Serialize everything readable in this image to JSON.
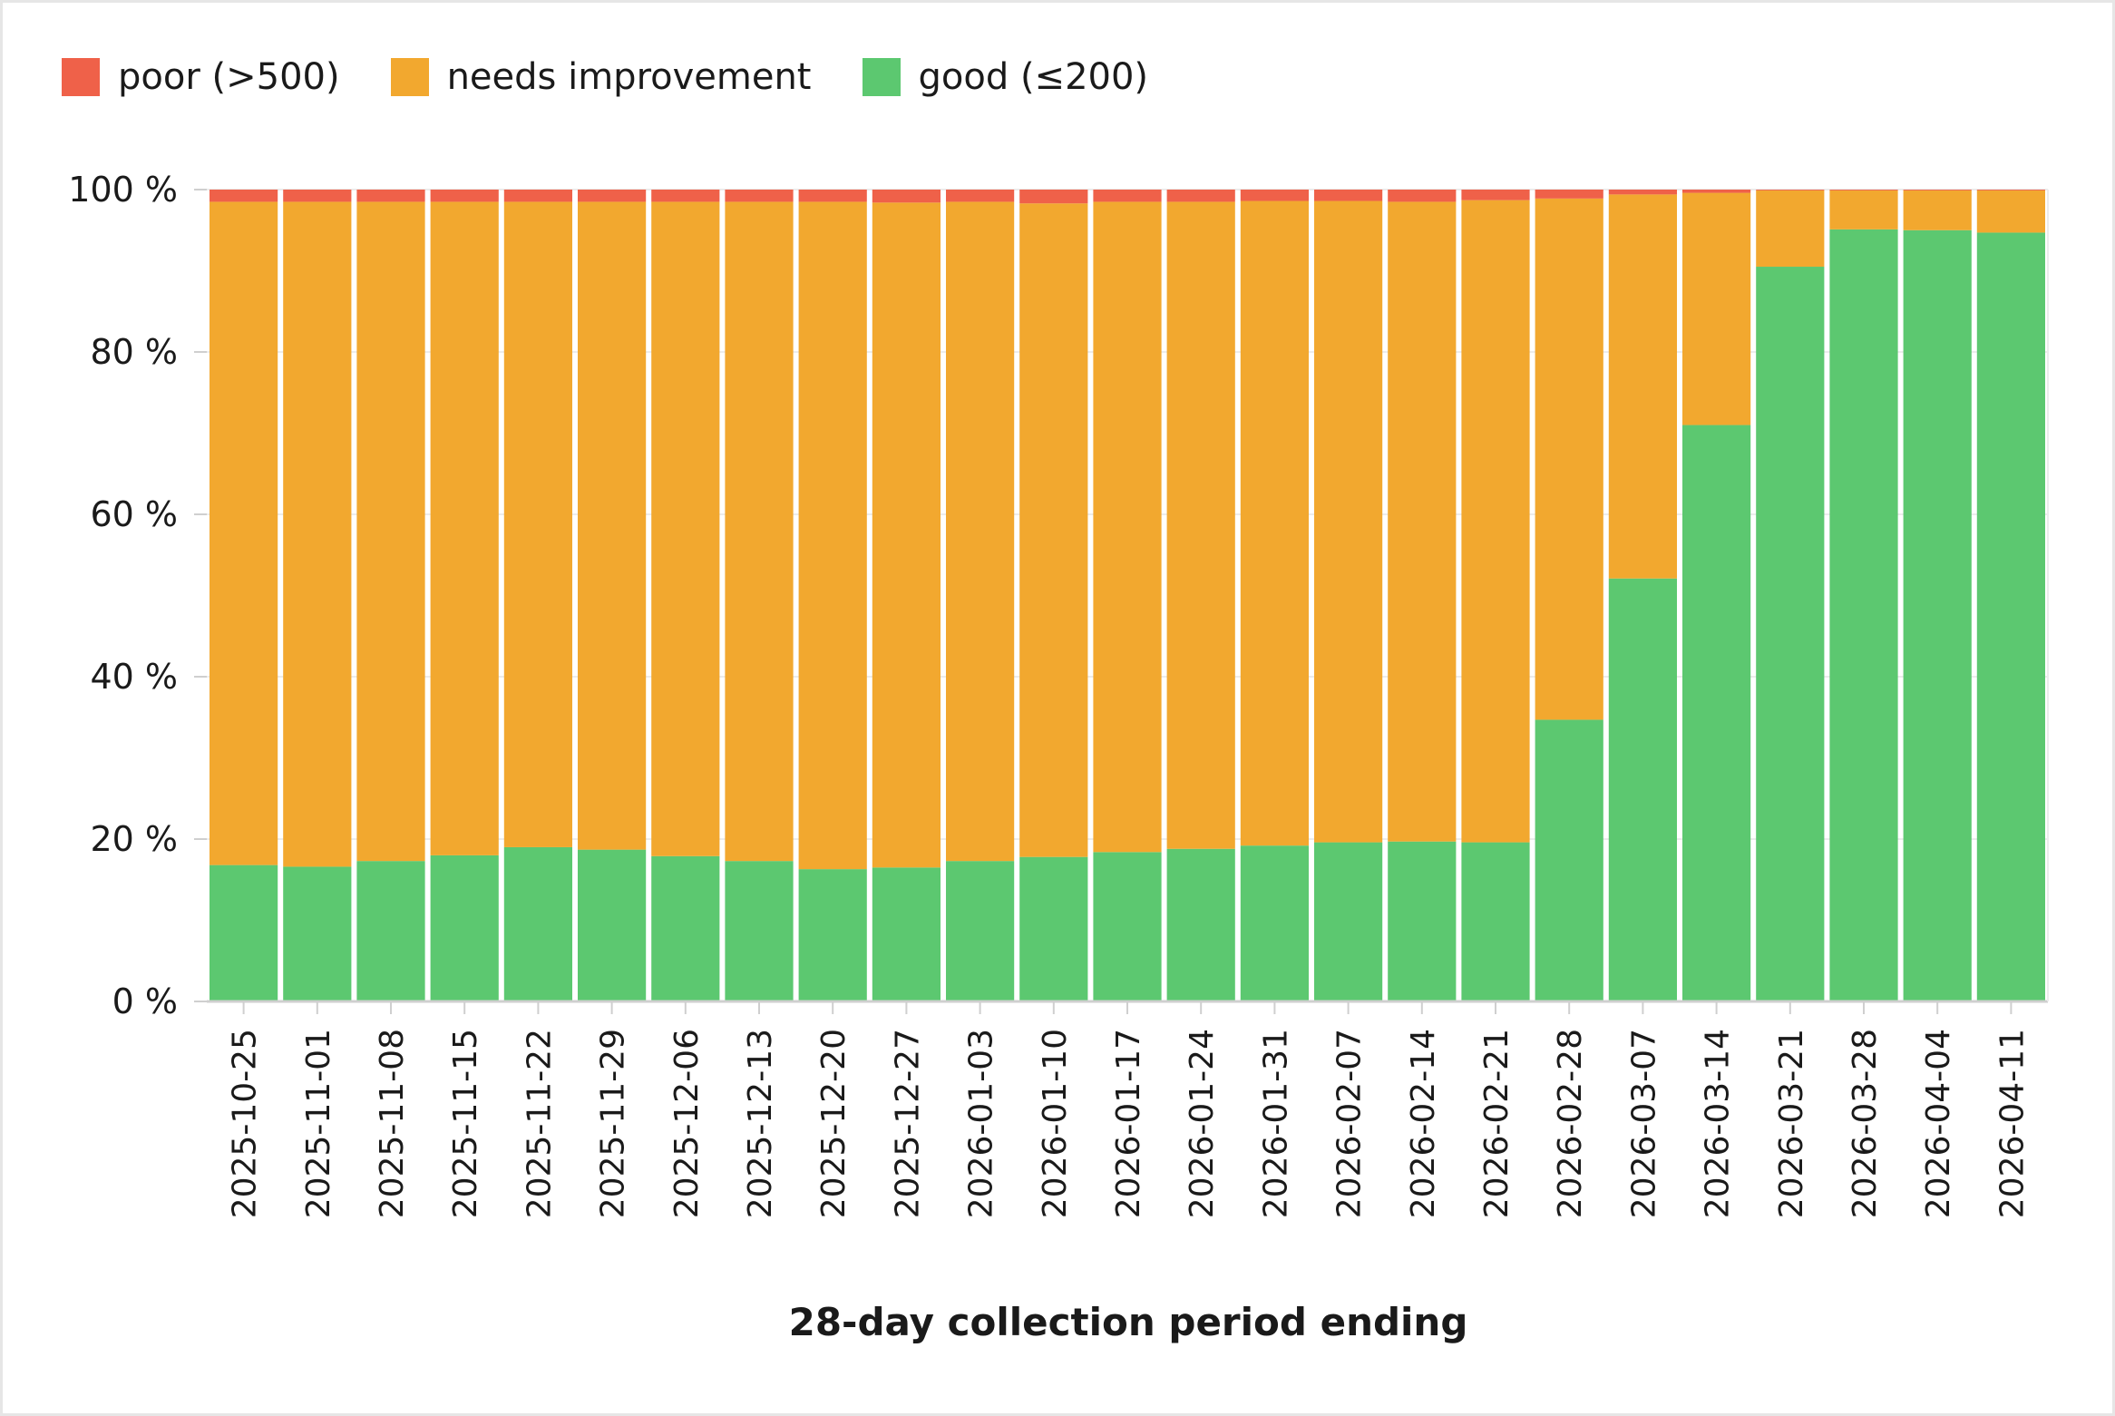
{
  "legend": {
    "items": [
      {
        "key": "poor",
        "label": "poor (>500)",
        "color": "#ef6149"
      },
      {
        "key": "needs",
        "label": "needs improvement",
        "color": "#f2a82f"
      },
      {
        "key": "good",
        "label": "good (≤200)",
        "color": "#5cc870"
      }
    ]
  },
  "chart_data": {
    "type": "bar",
    "stacked": true,
    "xlabel": "28-day collection period ending",
    "ylabel": "",
    "ylim": [
      0,
      100
    ],
    "yticks": [
      0,
      20,
      40,
      60,
      80,
      100
    ],
    "ytick_labels": [
      "0 %",
      "20 %",
      "40 %",
      "60 %",
      "80 %",
      "100 %"
    ],
    "categories": [
      "2025-10-25",
      "2025-11-01",
      "2025-11-08",
      "2025-11-15",
      "2025-11-22",
      "2025-11-29",
      "2025-12-06",
      "2025-12-13",
      "2025-12-20",
      "2025-12-27",
      "2026-01-03",
      "2026-01-10",
      "2026-01-17",
      "2026-01-24",
      "2026-01-31",
      "2026-02-07",
      "2026-02-14",
      "2026-02-21",
      "2026-02-28",
      "2026-03-07",
      "2026-03-14",
      "2026-03-21",
      "2026-03-28",
      "2026-04-04",
      "2026-04-11"
    ],
    "series": [
      {
        "name": "good (≤200)",
        "color": "#5cc870",
        "values": [
          16.8,
          16.6,
          17.3,
          18.0,
          19.0,
          18.7,
          17.9,
          17.3,
          16.3,
          16.5,
          17.3,
          17.8,
          18.4,
          18.8,
          19.2,
          19.6,
          19.7,
          19.6,
          34.7,
          52.1,
          71.0,
          90.5,
          95.1,
          95.0,
          94.7
        ]
      },
      {
        "name": "needs improvement",
        "color": "#f2a82f",
        "values": [
          81.7,
          81.9,
          81.2,
          80.5,
          79.5,
          79.8,
          80.6,
          81.2,
          82.2,
          81.9,
          81.2,
          80.5,
          80.1,
          79.7,
          79.4,
          79.0,
          78.8,
          79.1,
          64.2,
          47.3,
          28.6,
          9.4,
          4.8,
          4.9,
          5.2
        ]
      },
      {
        "name": "poor (>500)",
        "color": "#ef6149",
        "values": [
          1.5,
          1.5,
          1.5,
          1.5,
          1.5,
          1.5,
          1.5,
          1.5,
          1.5,
          1.6,
          1.5,
          1.7,
          1.5,
          1.5,
          1.4,
          1.4,
          1.5,
          1.3,
          1.1,
          0.6,
          0.4,
          0.1,
          0.1,
          0.1,
          0.1
        ]
      }
    ]
  }
}
